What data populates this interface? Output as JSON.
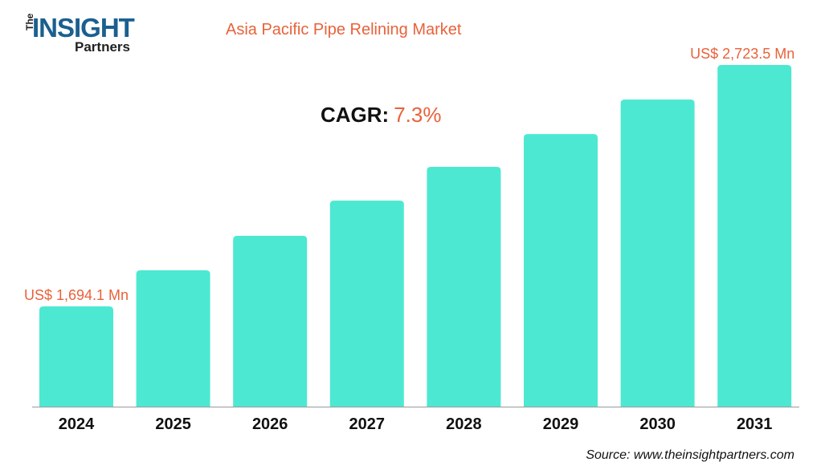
{
  "logo": {
    "the": "The",
    "insight": "INSIGHT",
    "partners": "Partners"
  },
  "source": "Source: www.theinsightpartners.com",
  "cagr": {
    "label": "CAGR:",
    "value": "7.3%"
  },
  "colors": {
    "bar": "#4de8d2",
    "accent": "#e8623a",
    "logo": "#1b5f8f"
  },
  "chart_data": {
    "type": "bar",
    "title": "Asia Pacific Pipe Relining Market",
    "categories": [
      "2024",
      "2025",
      "2026",
      "2027",
      "2028",
      "2029",
      "2030",
      "2031"
    ],
    "values": [
      1694.1,
      1848,
      1995,
      2145,
      2289,
      2429,
      2576,
      2723.5
    ],
    "data_labels": {
      "0": "US$ 1,694.1 Mn",
      "7": "US$ 2,723.5 Mn"
    },
    "unit": "US$ Mn",
    "grid": false,
    "legend": "none"
  }
}
